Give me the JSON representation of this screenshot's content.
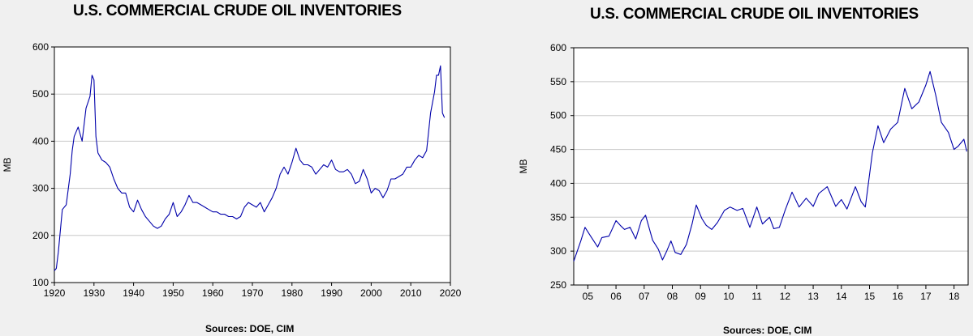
{
  "source_text": "Sources:  DOE, CIM",
  "chart_data": [
    {
      "type": "line",
      "title": "U.S. COMMERCIAL CRUDE OIL INVENTORIES",
      "ylabel": "MB",
      "xlabel": "",
      "ylim": [
        100,
        600
      ],
      "xlim": [
        1920,
        2020
      ],
      "yticks": [
        100,
        200,
        300,
        400,
        500,
        600
      ],
      "xticks": [
        1920,
        1930,
        1940,
        1950,
        1960,
        1970,
        1980,
        1990,
        2000,
        2010,
        2020
      ],
      "grid": true,
      "line_color": "#0000aa",
      "series": [
        {
          "x": [
            1920,
            1920.5,
            1921,
            1922,
            1923,
            1924,
            1924.5,
            1925,
            1926,
            1927,
            1928,
            1929,
            1929.5,
            1930,
            1930.5,
            1931,
            1932,
            1933,
            1934,
            1935,
            1936,
            1937,
            1938,
            1939,
            1940,
            1941,
            1942,
            1943,
            1944,
            1945,
            1946,
            1947,
            1948,
            1949,
            1950,
            1951,
            1952,
            1953,
            1954,
            1955,
            1956,
            1957,
            1958,
            1959,
            1960,
            1961,
            1962,
            1963,
            1964,
            1965,
            1966,
            1967,
            1968,
            1969,
            1970,
            1971,
            1972,
            1973,
            1974,
            1975,
            1976,
            1977,
            1978,
            1979,
            1980,
            1981,
            1982,
            1983,
            1984,
            1985,
            1986,
            1987,
            1988,
            1989,
            1990,
            1991,
            1992,
            1993,
            1994,
            1995,
            1996,
            1997,
            1998,
            1999,
            2000,
            2001,
            2002,
            2003,
            2004,
            2005,
            2006,
            2007,
            2008,
            2009,
            2010,
            2011,
            2012,
            2013,
            2014,
            2015,
            2016,
            2016.5,
            2017,
            2017.5,
            2018,
            2018.5
          ],
          "values": [
            125,
            130,
            165,
            255,
            265,
            330,
            380,
            410,
            430,
            400,
            470,
            495,
            540,
            530,
            410,
            375,
            360,
            355,
            345,
            320,
            300,
            290,
            290,
            260,
            250,
            275,
            255,
            240,
            230,
            220,
            215,
            220,
            235,
            245,
            270,
            240,
            250,
            265,
            285,
            270,
            270,
            265,
            260,
            255,
            250,
            250,
            245,
            245,
            240,
            240,
            235,
            240,
            260,
            270,
            265,
            260,
            270,
            250,
            265,
            280,
            300,
            330,
            345,
            330,
            355,
            385,
            360,
            350,
            350,
            345,
            330,
            340,
            350,
            345,
            360,
            340,
            335,
            335,
            340,
            330,
            310,
            315,
            340,
            320,
            290,
            300,
            295,
            280,
            295,
            320,
            320,
            325,
            330,
            345,
            345,
            360,
            370,
            365,
            380,
            460,
            505,
            540,
            540,
            560,
            460,
            450
          ]
        }
      ]
    },
    {
      "type": "line",
      "title": "U.S. COMMERCIAL CRUDE OIL INVENTORIES",
      "ylabel": "MB",
      "xlabel": "",
      "ylim": [
        250,
        600
      ],
      "xlim": [
        2004.5,
        2018.5
      ],
      "yticks": [
        250,
        300,
        350,
        400,
        450,
        500,
        550,
        600
      ],
      "xticks": [
        "05",
        "06",
        "07",
        "08",
        "09",
        "10",
        "11",
        "12",
        "13",
        "14",
        "15",
        "16",
        "17",
        "18"
      ],
      "grid": true,
      "line_color": "#0000aa",
      "series": [
        {
          "x": [
            2004.5,
            2004.75,
            2004.9,
            2005.1,
            2005.35,
            2005.5,
            2005.75,
            2006.0,
            2006.15,
            2006.3,
            2006.5,
            2006.7,
            2006.9,
            2007.05,
            2007.3,
            2007.5,
            2007.65,
            2007.8,
            2007.95,
            2008.1,
            2008.3,
            2008.5,
            2008.7,
            2008.85,
            2009.05,
            2009.2,
            2009.4,
            2009.6,
            2009.85,
            2010.05,
            2010.3,
            2010.5,
            2010.75,
            2011.0,
            2011.2,
            2011.45,
            2011.6,
            2011.8,
            2012.0,
            2012.25,
            2012.5,
            2012.75,
            2013.0,
            2013.2,
            2013.5,
            2013.8,
            2014.0,
            2014.2,
            2014.5,
            2014.7,
            2014.85,
            2015.1,
            2015.3,
            2015.5,
            2015.75,
            2016.0,
            2016.25,
            2016.5,
            2016.75,
            2017.0,
            2017.15,
            2017.35,
            2017.55,
            2017.8,
            2018.0,
            2018.15,
            2018.35,
            2018.45
          ],
          "values": [
            285,
            315,
            335,
            322,
            306,
            320,
            322,
            345,
            338,
            332,
            335,
            318,
            345,
            353,
            316,
            303,
            287,
            300,
            315,
            298,
            295,
            310,
            340,
            368,
            348,
            338,
            332,
            342,
            360,
            365,
            360,
            363,
            335,
            365,
            340,
            350,
            333,
            335,
            360,
            387,
            365,
            378,
            366,
            385,
            395,
            366,
            376,
            362,
            395,
            373,
            365,
            445,
            485,
            460,
            480,
            490,
            540,
            510,
            520,
            545,
            565,
            530,
            490,
            475,
            450,
            455,
            465,
            447
          ]
        }
      ]
    }
  ]
}
